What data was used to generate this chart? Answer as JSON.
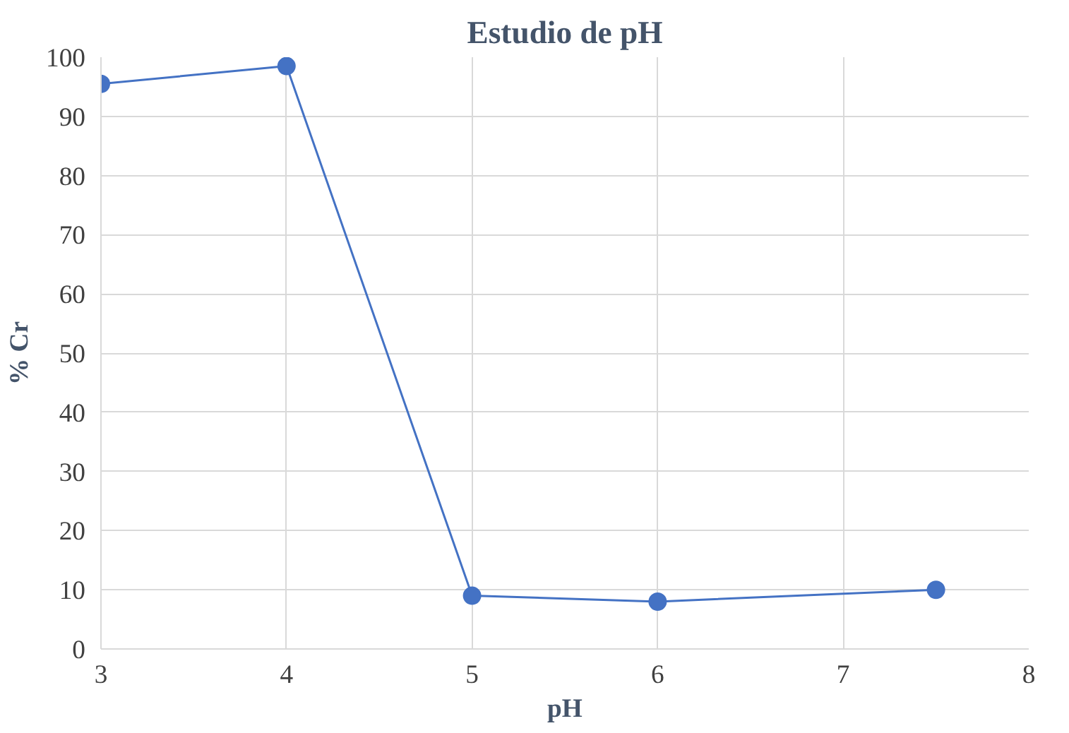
{
  "chart_data": {
    "type": "line",
    "title": "Estudio de pH",
    "xlabel": "pH",
    "ylabel": "% Cr",
    "x": [
      3,
      4,
      5,
      6,
      7.5
    ],
    "series": [
      {
        "color": "#4472c4",
        "values": [
          95.5,
          98.5,
          9,
          8,
          10
        ]
      }
    ],
    "xlim": [
      3,
      8
    ],
    "xticks": [
      3,
      4,
      5,
      6,
      7,
      8
    ],
    "ylim": [
      0,
      100
    ],
    "yticks": [
      0,
      10,
      20,
      30,
      40,
      50,
      60,
      70,
      80,
      90,
      100
    ],
    "grid": true,
    "marker": "circle",
    "line_style": "solid"
  }
}
